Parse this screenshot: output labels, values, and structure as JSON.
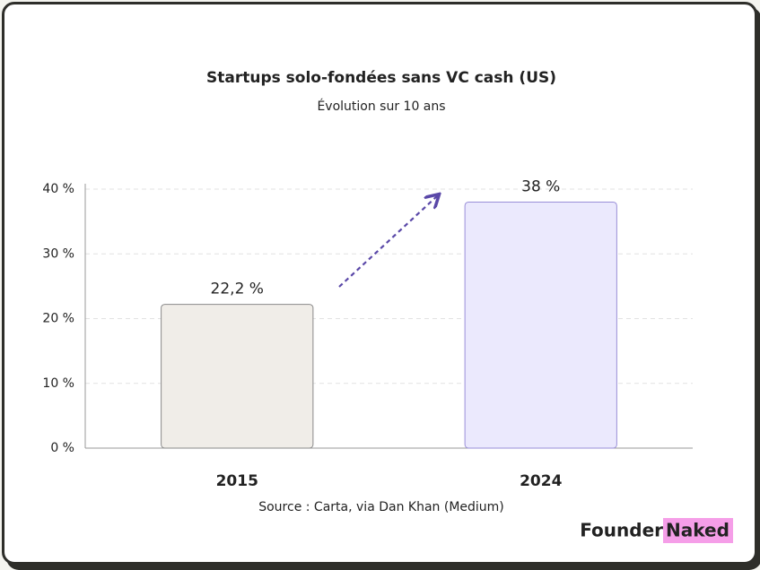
{
  "chart_data": {
    "type": "bar",
    "title": "Startups solo-fondées sans VC cash (US)",
    "subtitle": "Évolution sur 10 ans",
    "categories": [
      "2015",
      "2024"
    ],
    "values": [
      22.2,
      38
    ],
    "value_labels": [
      "22,2 %",
      "38 %"
    ],
    "colors": [
      "#f0ede8",
      "#ebe9fd"
    ],
    "stroke_colors": [
      "#8a8a8a",
      "#9a8fd8"
    ],
    "ylim": [
      0,
      40
    ],
    "yticks": [
      {
        "value": 0,
        "label": "0 %"
      },
      {
        "value": 10,
        "label": "10 %"
      },
      {
        "value": 20,
        "label": "20 %"
      },
      {
        "value": 30,
        "label": "30 %"
      },
      {
        "value": 40,
        "label": "40 %"
      }
    ],
    "grid": true,
    "source": "Source : Carta, via Dan Khan (Medium)"
  },
  "brand": {
    "first": "Founder",
    "second": "Naked"
  }
}
